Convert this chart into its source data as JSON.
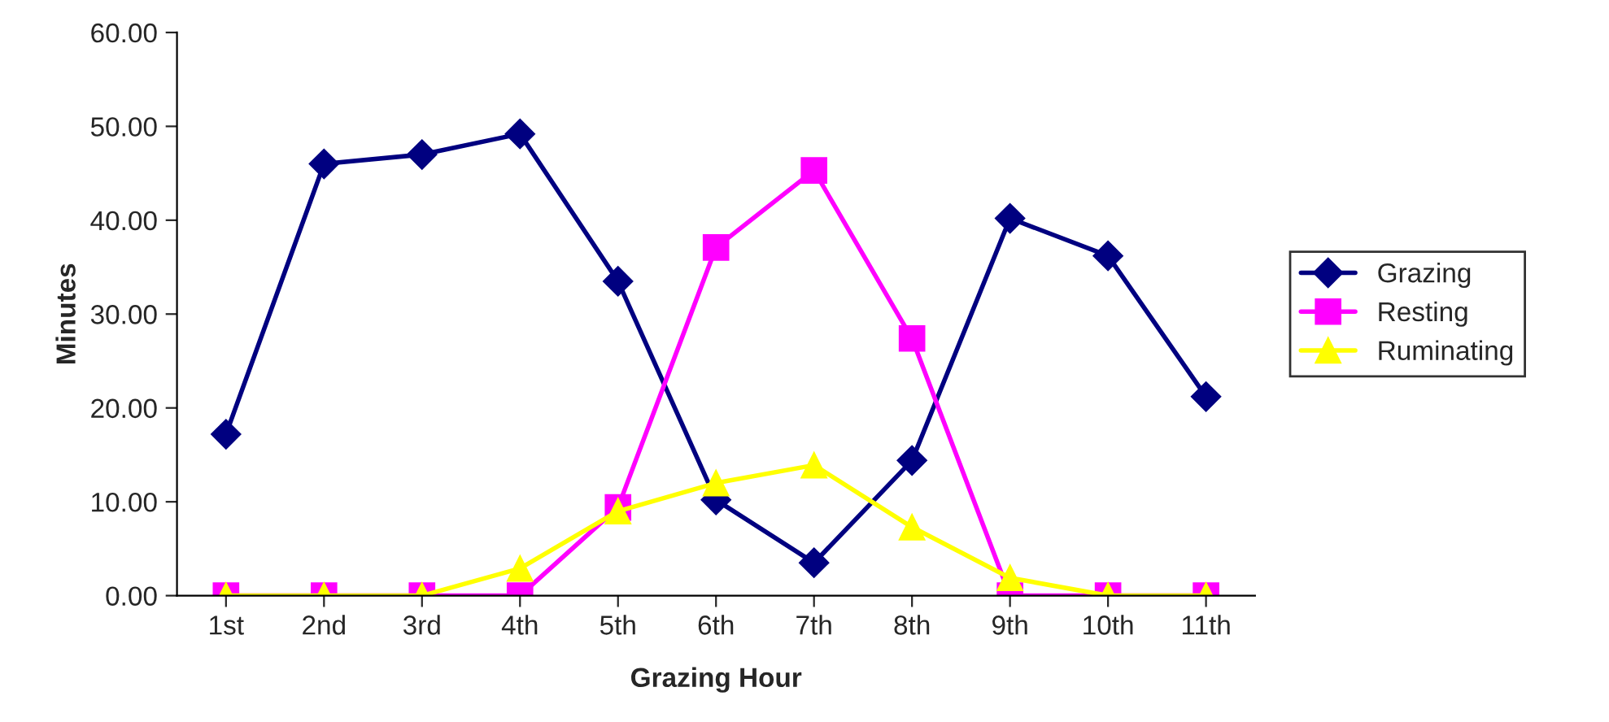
{
  "chart_data": {
    "type": "line",
    "xlabel": "Grazing Hour",
    "ylabel": "Minutes",
    "categories": [
      "1st",
      "2nd",
      "3rd",
      "4th",
      "5th",
      "6th",
      "7th",
      "8th",
      "9th",
      "10th",
      "11th"
    ],
    "series": [
      {
        "name": "Grazing",
        "color": "#000080",
        "marker": "diamond",
        "values": [
          17.2,
          46.0,
          47.0,
          49.2,
          33.5,
          10.2,
          3.5,
          14.4,
          40.2,
          36.2,
          21.2
        ]
      },
      {
        "name": "Resting",
        "color": "#ff00ff",
        "marker": "square",
        "values": [
          0,
          0,
          0,
          0,
          9.4,
          37.1,
          45.3,
          27.4,
          0,
          0,
          0
        ]
      },
      {
        "name": "Ruminating",
        "color": "#ffff00",
        "marker": "triangle",
        "values": [
          0,
          0,
          0,
          2.9,
          9.0,
          12.0,
          13.9,
          7.3,
          1.9,
          0,
          0
        ]
      }
    ],
    "ylim": [
      0,
      60
    ],
    "yticks": [
      {
        "value": 0,
        "label": "0.00"
      },
      {
        "value": 10,
        "label": "10.00"
      },
      {
        "value": 20,
        "label": "20.00"
      },
      {
        "value": 30,
        "label": "30.00"
      },
      {
        "value": 40,
        "label": "40.00"
      },
      {
        "value": 50,
        "label": "50.00"
      },
      {
        "value": 60,
        "label": "60.00"
      }
    ],
    "grid": false,
    "legend": "right",
    "line_style": "solid"
  }
}
